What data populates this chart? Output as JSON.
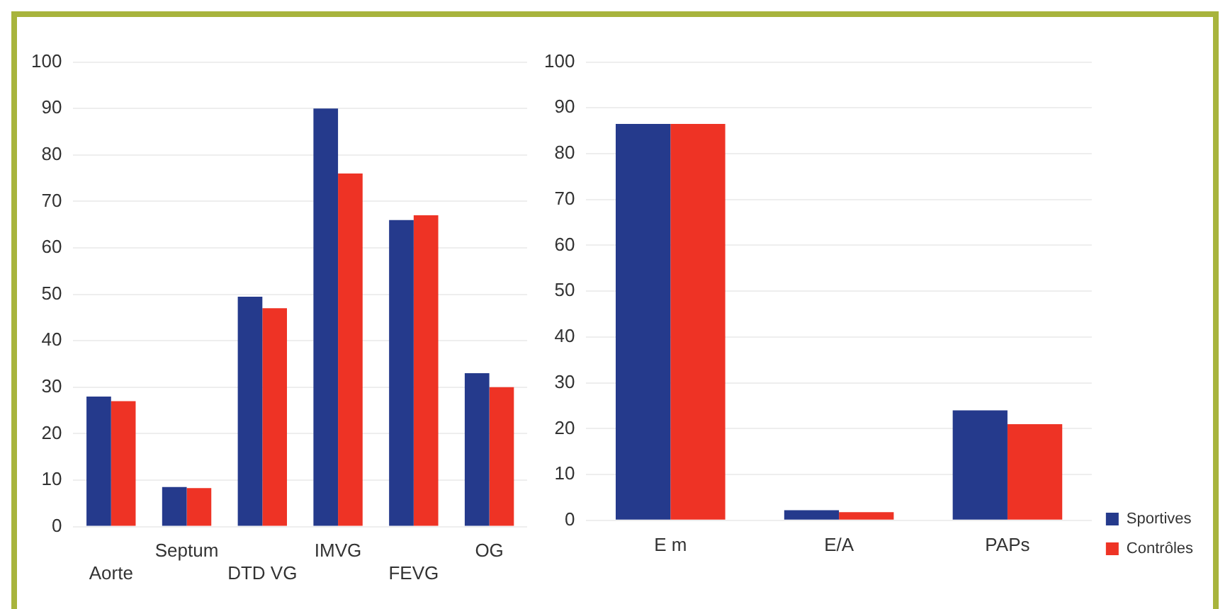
{
  "chart_data": [
    {
      "type": "bar",
      "categories": [
        "Aorte",
        "Septum",
        "DTD VG",
        "IMVG",
        "FEVG",
        "OG"
      ],
      "series": [
        {
          "color": "#253a8c",
          "values": [
            28,
            8.5,
            49.5,
            90,
            66,
            33
          ]
        },
        {
          "color": "#ee3325",
          "values": [
            27,
            8.3,
            47,
            76,
            67,
            30
          ]
        }
      ],
      "ylim": [
        0,
        100
      ],
      "yticks": [
        0,
        10,
        20,
        30,
        40,
        50,
        60,
        70,
        80,
        90,
        100
      ],
      "grid": "y",
      "legend": false
    },
    {
      "type": "bar",
      "categories": [
        "E m",
        "E/A",
        "PAPs"
      ],
      "series": [
        {
          "name": "Sportives",
          "color": "#253a8c",
          "values": [
            86.5,
            2.2,
            24
          ]
        },
        {
          "name": "Contrôles",
          "color": "#ee3325",
          "values": [
            86.5,
            1.8,
            21
          ]
        }
      ],
      "ylim": [
        0,
        100
      ],
      "yticks": [
        0,
        10,
        20,
        30,
        40,
        50,
        60,
        70,
        80,
        90,
        100
      ],
      "grid": "y",
      "legend": "bottom right"
    }
  ]
}
